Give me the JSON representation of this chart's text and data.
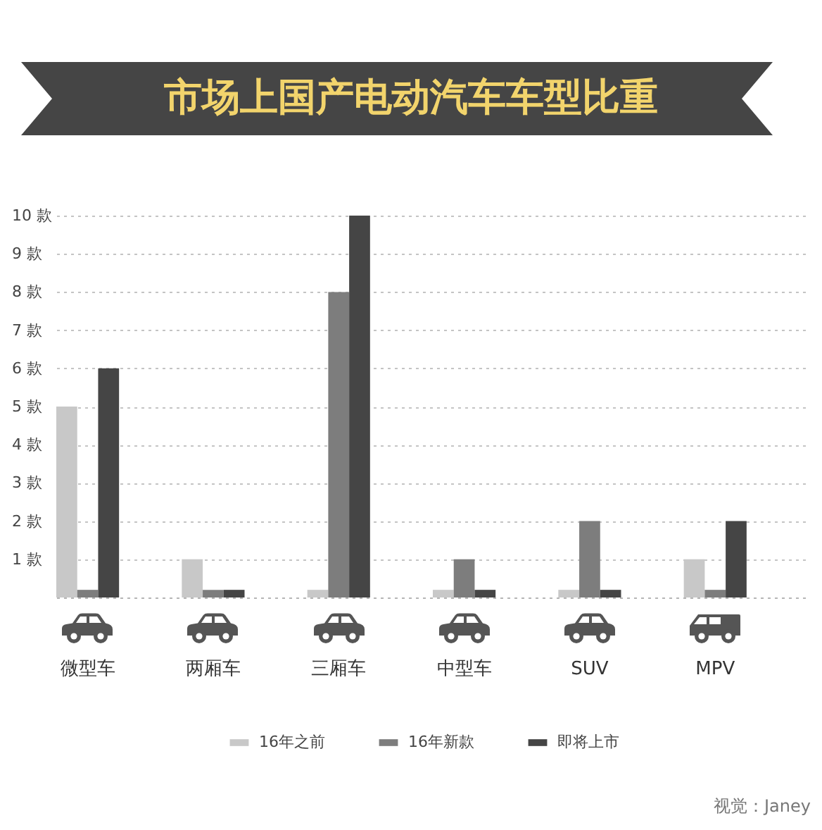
{
  "chart_data": {
    "type": "bar",
    "title": "市场上国产电动汽车车型比重",
    "categories": [
      "微型车",
      "两厢车",
      "三厢车",
      "中型车",
      "SUV",
      "MPV"
    ],
    "series": [
      {
        "name": "16年之前",
        "color": "#c8c8c8",
        "values": [
          5,
          1,
          0.2,
          0.2,
          0.2,
          1
        ]
      },
      {
        "name": "16年新款",
        "color": "#7d7d7d",
        "values": [
          0.2,
          0.2,
          8,
          1,
          2,
          0.2
        ]
      },
      {
        "name": "即将上市",
        "color": "#454545",
        "values": [
          6,
          0.2,
          10,
          0.2,
          0.2,
          2
        ]
      }
    ],
    "ylim": [
      0,
      10
    ],
    "yticks": [
      {
        "value": 1,
        "label": "1 款"
      },
      {
        "value": 2,
        "label": "2 款"
      },
      {
        "value": 3,
        "label": "3 款"
      },
      {
        "value": 4,
        "label": "4 款"
      },
      {
        "value": 5,
        "label": "5 款"
      },
      {
        "value": 6,
        "label": "6 款"
      },
      {
        "value": 7,
        "label": "7 款"
      },
      {
        "value": 8,
        "label": "8 款"
      },
      {
        "value": 9,
        "label": "9 款"
      },
      {
        "value": 10,
        "label": "10 款"
      }
    ],
    "grid": "y",
    "legend": "bottom",
    "annotations": [
      "视觉：Janey"
    ]
  }
}
